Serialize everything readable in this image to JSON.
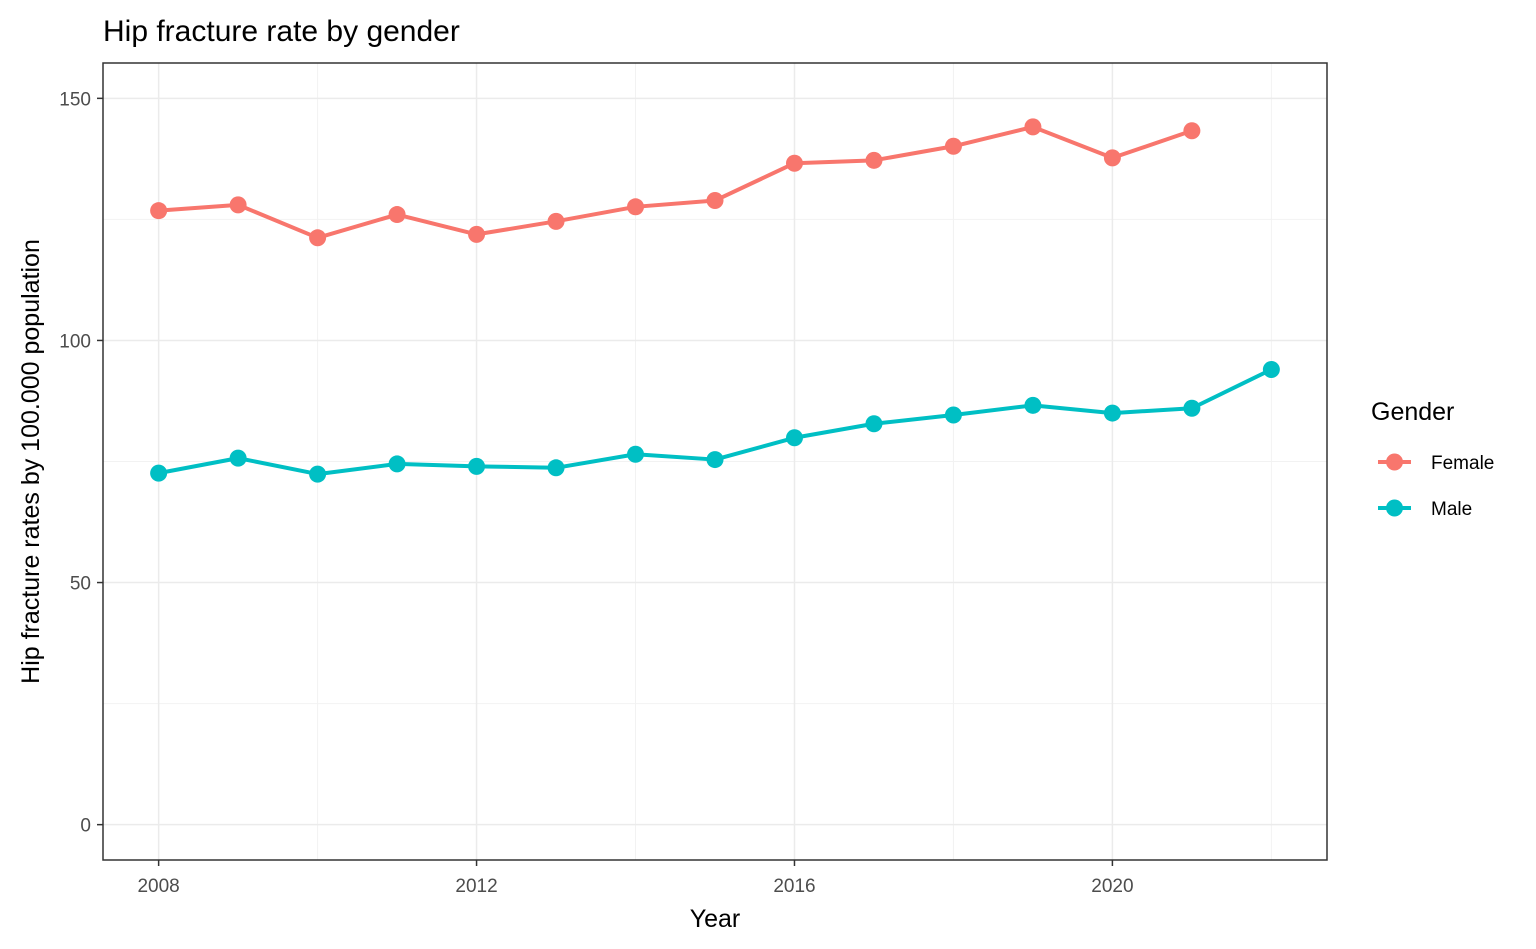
{
  "chart_data": {
    "type": "line",
    "title": "Hip fracture rate by gender",
    "xlabel": "Year",
    "ylabel": "Hip fracture rates by 100.000 population",
    "xlim": [
      2007.3,
      2022.7
    ],
    "ylim": [
      -7.3,
      157.3
    ],
    "x_ticks": [
      2008,
      2012,
      2016,
      2020
    ],
    "y_ticks": [
      0,
      50,
      100,
      150
    ],
    "grid": true,
    "legend": {
      "title": "Gender",
      "position": "right"
    },
    "series": [
      {
        "name": "Female",
        "color": "#f8766d",
        "x": [
          2008,
          2009,
          2010,
          2011,
          2012,
          2013,
          2014,
          2015,
          2016,
          2017,
          2018,
          2019,
          2020,
          2021
        ],
        "y": [
          126.8,
          128.0,
          121.2,
          126.0,
          121.9,
          124.6,
          127.6,
          128.9,
          136.6,
          137.2,
          140.1,
          144.1,
          137.7,
          143.3
        ]
      },
      {
        "name": "Male",
        "color": "#00bfc4",
        "x": [
          2008,
          2009,
          2010,
          2011,
          2012,
          2013,
          2014,
          2015,
          2016,
          2017,
          2018,
          2019,
          2020,
          2021,
          2022
        ],
        "y": [
          72.6,
          75.7,
          72.4,
          74.5,
          74.0,
          73.7,
          76.5,
          75.4,
          79.9,
          82.8,
          84.6,
          86.6,
          85.0,
          86.0,
          94.0
        ]
      }
    ]
  }
}
